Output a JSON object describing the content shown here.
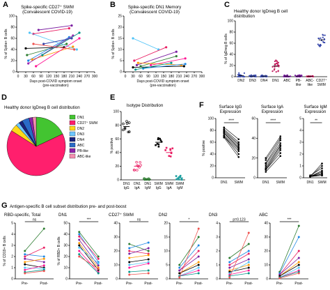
{
  "chart_data": [
    {
      "id": "A",
      "type": "line",
      "title": "Spike-specific CD27⁺ SWM",
      "subtitle": "(Convalescent COVID-19)",
      "xlabel": "Days post-COVID symptom onset",
      "xlabel2": "(pre-vaccination)",
      "ylabel": "% of Spike+ B cells",
      "xlim": [
        0,
        300
      ],
      "ylim": [
        0,
        100
      ],
      "xticks": [
        0,
        30,
        60,
        90,
        120,
        150,
        180,
        210,
        240,
        270,
        300
      ],
      "yticks": [
        0,
        20,
        40,
        60,
        80,
        100
      ],
      "series": [
        {
          "color": "#2e7d32",
          "x": [
            35,
            190
          ],
          "y": [
            30,
            50
          ]
        },
        {
          "color": "#1e88e5",
          "x": [
            40,
            200
          ],
          "y": [
            20,
            62
          ]
        },
        {
          "color": "#e91e63",
          "x": [
            60,
            200
          ],
          "y": [
            68,
            78
          ]
        },
        {
          "color": "#7b1fa2",
          "x": [
            80,
            210
          ],
          "y": [
            75,
            83
          ]
        },
        {
          "color": "#ff9800",
          "x": [
            55,
            215
          ],
          "y": [
            22,
            45
          ]
        },
        {
          "color": "#000000",
          "x": [
            30,
            180
          ],
          "y": [
            42,
            44
          ]
        },
        {
          "color": "#4fc3f7",
          "x": [
            45,
            230
          ],
          "y": [
            70,
            40
          ]
        },
        {
          "color": "#ff1493",
          "x": [
            70,
            240
          ],
          "y": [
            10,
            60
          ]
        },
        {
          "color": "#9c27b0",
          "x": [
            40,
            215
          ],
          "y": [
            15,
            65
          ]
        },
        {
          "color": "#009688",
          "x": [
            95,
            240
          ],
          "y": [
            30,
            70
          ]
        },
        {
          "color": "#ef5350",
          "x": [
            60,
            220
          ],
          "y": [
            50,
            40
          ]
        },
        {
          "color": "#3949ab",
          "x": [
            100,
            210
          ],
          "y": [
            50,
            60
          ]
        }
      ]
    },
    {
      "id": "B",
      "type": "line",
      "title": "Spike-specific DN1 Memory",
      "subtitle": "(Convalescent COVID-19)",
      "xlabel": "Days post-COVID symptom onset",
      "xlabel2": "(pre-vaccination)",
      "ylabel": "% of Spike+ B cells",
      "xlim": [
        0,
        300
      ],
      "ylim": [
        0,
        25
      ],
      "xticks": [
        0,
        30,
        60,
        90,
        120,
        150,
        180,
        210,
        240,
        270,
        300
      ],
      "yticks": [
        0,
        5,
        10,
        15,
        20,
        25
      ],
      "series": [
        {
          "color": "#4fc3f7",
          "x": [
            30,
            130
          ],
          "y": [
            15,
            10
          ]
        },
        {
          "color": "#e91e63",
          "x": [
            35,
            160
          ],
          "y": [
            5,
            11
          ]
        },
        {
          "color": "#7b1fa2",
          "x": [
            45,
            200
          ],
          "y": [
            3,
            9
          ]
        },
        {
          "color": "#000000",
          "x": [
            30,
            230
          ],
          "y": [
            2,
            2.5
          ]
        },
        {
          "color": "#2e7d32",
          "x": [
            60,
            200
          ],
          "y": [
            2.5,
            7
          ]
        },
        {
          "color": "#ff9800",
          "x": [
            50,
            220
          ],
          "y": [
            4,
            3
          ]
        },
        {
          "color": "#1e88e5",
          "x": [
            70,
            235
          ],
          "y": [
            1.5,
            3.5
          ]
        },
        {
          "color": "#ff1493",
          "x": [
            100,
            235
          ],
          "y": [
            3,
            6
          ]
        },
        {
          "color": "#009688",
          "x": [
            40,
            180
          ],
          "y": [
            1,
            4
          ]
        }
      ]
    },
    {
      "id": "C",
      "type": "scatter",
      "title": "Healthy donor IgDneg B cell",
      "title2": "distribution",
      "ylabel": "% of IgDneg B cells",
      "ylim": [
        0,
        100
      ],
      "yticks": [
        0,
        20,
        40,
        60,
        80,
        100
      ],
      "categories": [
        "DN2",
        "DN3",
        "DN4",
        "DN1",
        "ABC",
        "PB-like",
        "ABC-like",
        "CD27⁺ SWM"
      ],
      "colors": [
        "#3f51b5",
        "#3f51b5",
        "#3f51b5",
        "#c2185b",
        "#7b1fa2",
        "#7b1fa2",
        "#c2185b",
        "#3949ab"
      ],
      "medians": [
        2,
        1,
        1,
        19,
        1,
        1,
        0.5,
        66
      ],
      "spreads": [
        5,
        2,
        2,
        11,
        2,
        2,
        1,
        12
      ]
    },
    {
      "id": "D",
      "type": "pie",
      "title": "Healthy donor IgDneg B cell distribution",
      "labels": [
        "DN1",
        "CD27⁺ SWM",
        "DN2",
        "DN3",
        "DN4",
        "ABC",
        "PB-like",
        "ABC-like"
      ],
      "values": [
        18,
        66,
        4,
        2,
        2,
        4,
        2,
        2
      ],
      "colors": [
        "#43c431",
        "#ff1f6d",
        "#ffd91a",
        "#6ec6ff",
        "#1a237e",
        "#2a6ac7",
        "#8e24aa",
        "#f48fb1"
      ]
    },
    {
      "id": "E",
      "type": "scatter",
      "title": "Isotype Distribution",
      "ylabel": "% positive",
      "ylim": [
        0,
        100
      ],
      "yticks": [
        0,
        20,
        40,
        60,
        80,
        100
      ],
      "categories": [
        "DN1 IgG",
        "DN1 IgA",
        "DN1 IgM",
        "SWM IgG",
        "SWM IgA",
        "SWM IgM"
      ],
      "colors": [
        "#000000",
        "#e91e63",
        "#2e7d32",
        "#000000",
        "#e91e63",
        "#1a9f9f"
      ],
      "medians": [
        78,
        20,
        1,
        55,
        40,
        3
      ],
      "spreads": [
        10,
        7,
        1,
        8,
        8,
        3
      ]
    },
    {
      "id": "F1",
      "type": "line",
      "title": "Surface IgG",
      "title2": "Expression",
      "ylabel": "% positive",
      "ylim": [
        0,
        100
      ],
      "yticks": [
        0,
        20,
        40,
        60,
        80,
        100
      ],
      "categories": [
        "DN1",
        "SWM"
      ],
      "sig": "****",
      "pre": [
        85,
        82,
        80,
        78,
        76,
        75,
        72,
        70,
        70,
        68
      ],
      "post": [
        65,
        60,
        57,
        55,
        52,
        50,
        48,
        45,
        40,
        35
      ]
    },
    {
      "id": "F2",
      "type": "line",
      "title": "Surface IgA",
      "title2": "Expression",
      "ylim": [
        0,
        60
      ],
      "yticks": [
        0,
        20,
        40,
        60
      ],
      "categories": [
        "DN1",
        "SWM"
      ],
      "sig": "****",
      "pre": [
        20,
        18,
        15,
        14,
        12,
        10,
        9,
        8,
        8,
        6
      ],
      "post": [
        42,
        40,
        38,
        35,
        33,
        32,
        30,
        28,
        25,
        22
      ]
    },
    {
      "id": "F3",
      "type": "line",
      "title": "Surface IgM",
      "title2": "Expression",
      "ylim": [
        0,
        5
      ],
      "yticks": [
        0,
        1,
        2,
        3,
        4,
        5
      ],
      "categories": [
        "DN1",
        "SWM"
      ],
      "sig": "**",
      "pre": [
        0.1,
        0.1,
        0.2,
        0.1,
        0.1,
        0.1,
        0.1,
        0.1,
        0.1,
        0.1
      ],
      "post": [
        1.2,
        1.0,
        0.8,
        0.6,
        0.5,
        0.4,
        0.3,
        0.3,
        0.2,
        0.2
      ]
    },
    {
      "id": "G",
      "type": "line",
      "heading": "Antigen-specific B cell subset distribution pre- and post-boost",
      "categories": [
        "Pre-",
        "Post-"
      ],
      "series_colors": [
        "#2e7d32",
        "#1e88e5",
        "#e91e63",
        "#7b1fa2",
        "#ff9800",
        "#000000",
        "#4fc3f7",
        "#ff1493",
        "#009688",
        "#ef5350"
      ],
      "panels": [
        {
          "title": "RBD-specific, Total",
          "ylabel": "% of CD19+ B cells",
          "ylim": [
            0,
            5
          ],
          "yticks": [
            0,
            1,
            2,
            3,
            4,
            5
          ],
          "sig": "ns",
          "pre": [
            2.5,
            2.2,
            2.0,
            1.8,
            1.5,
            1.3,
            1.0,
            0.8,
            0.6,
            0.5
          ],
          "post": [
            4.5,
            2.0,
            2.8,
            1.5,
            1.8,
            1.0,
            0.9,
            1.2,
            0.8,
            0.7
          ]
        },
        {
          "title": "DN1",
          "ylabel": "% of RBD+ B cells",
          "ylim": [
            0,
            50
          ],
          "yticks": [
            0,
            10,
            20,
            30,
            40,
            50
          ],
          "sig": "***",
          "pre": [
            42,
            40,
            38,
            35,
            32,
            30,
            28,
            25,
            22,
            20
          ],
          "post": [
            20,
            15,
            18,
            12,
            10,
            8,
            14,
            6,
            5,
            9
          ]
        },
        {
          "title": "CD27⁺ SWM",
          "ylim": [
            0,
            40
          ],
          "yticks": [
            0,
            10,
            20,
            30,
            40
          ],
          "sig": "ns",
          "pre": [
            25,
            22,
            20,
            18,
            15,
            12,
            10,
            8,
            5,
            3
          ],
          "post": [
            20,
            26,
            18,
            22,
            17,
            14,
            12,
            11,
            6,
            4
          ]
        },
        {
          "title": "DN2",
          "ylim": [
            0,
            20
          ],
          "yticks": [
            0,
            5,
            10,
            15,
            20
          ],
          "sig": "*",
          "pre": [
            5,
            4,
            3,
            3,
            2,
            2,
            1,
            1,
            1,
            0.5
          ],
          "post": [
            15,
            12,
            10,
            8,
            6,
            5,
            4,
            3,
            2,
            18
          ]
        },
        {
          "title": "DN3",
          "ylim": [
            0,
            4
          ],
          "yticks": [
            0,
            1,
            2,
            3,
            4
          ],
          "sig": "p=0.123",
          "pre": [
            1.5,
            1.2,
            1.0,
            0.8,
            0.6,
            0.5,
            0.4,
            0.3,
            0.2,
            0.1
          ],
          "post": [
            2.5,
            2.0,
            1.8,
            1.4,
            1.0,
            0.8,
            1.2,
            0.6,
            0.4,
            3.3
          ]
        },
        {
          "title": "ABC",
          "ylim": [
            0,
            40
          ],
          "yticks": [
            0,
            10,
            20,
            30,
            40
          ],
          "sig": "***",
          "pre": [
            5,
            4,
            3,
            3,
            2,
            2,
            1,
            1,
            1,
            0.5
          ],
          "post": [
            38,
            30,
            20,
            15,
            12,
            10,
            8,
            6,
            5,
            4
          ]
        }
      ]
    }
  ]
}
